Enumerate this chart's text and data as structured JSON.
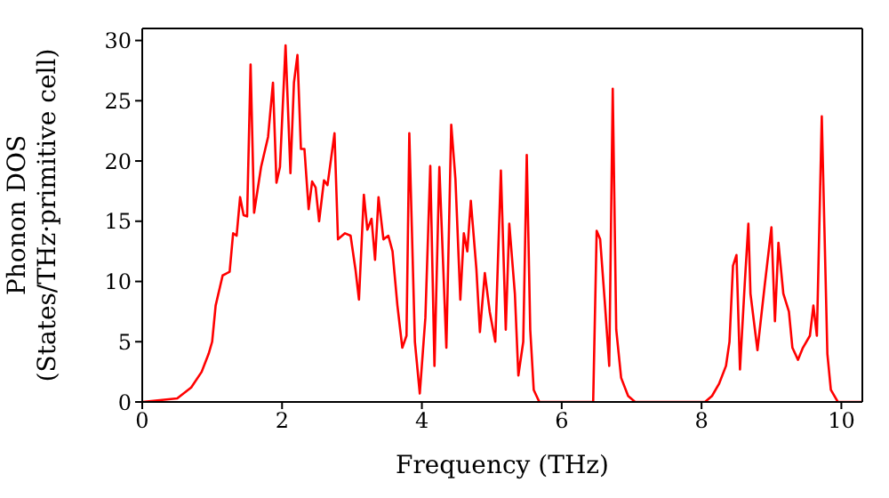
{
  "chart_data": {
    "type": "line",
    "xlabel": "Frequency (THz)",
    "ylabel": "Phonon DOS\n(States/THz·primitive cell)",
    "xlim": [
      0,
      10.3
    ],
    "xticks": [
      0,
      2,
      4,
      6,
      8,
      10
    ],
    "ylim": [
      0,
      31
    ],
    "yticks": [
      0,
      5,
      10,
      15,
      20,
      25,
      30
    ],
    "marker": "none",
    "line_style": "solid",
    "x": [
      0,
      0.5,
      0.7,
      0.85,
      0.95,
      1.0,
      1.05,
      1.15,
      1.25,
      1.3,
      1.35,
      1.4,
      1.45,
      1.5,
      1.55,
      1.6,
      1.7,
      1.8,
      1.87,
      1.92,
      1.97,
      2.05,
      2.12,
      2.17,
      2.22,
      2.27,
      2.32,
      2.38,
      2.43,
      2.48,
      2.53,
      2.6,
      2.65,
      2.75,
      2.8,
      2.9,
      2.98,
      3.05,
      3.1,
      3.17,
      3.22,
      3.28,
      3.33,
      3.38,
      3.45,
      3.52,
      3.58,
      3.65,
      3.72,
      3.78,
      3.82,
      3.9,
      3.97,
      4.05,
      4.12,
      4.18,
      4.25,
      4.35,
      4.42,
      4.48,
      4.55,
      4.6,
      4.65,
      4.7,
      4.78,
      4.83,
      4.9,
      4.97,
      5.05,
      5.13,
      5.2,
      5.25,
      5.33,
      5.38,
      5.45,
      5.5,
      5.55,
      5.6,
      5.68,
      6.45,
      6.5,
      6.55,
      6.62,
      6.68,
      6.73,
      6.78,
      6.85,
      6.95,
      7.05,
      8.05,
      8.15,
      8.25,
      8.35,
      8.4,
      8.45,
      8.5,
      8.55,
      8.62,
      8.67,
      8.7,
      8.8,
      8.9,
      9.0,
      9.05,
      9.1,
      9.17,
      9.25,
      9.3,
      9.38,
      9.45,
      9.55,
      9.6,
      9.65,
      9.72,
      9.8,
      9.85,
      9.95,
      10.3
    ],
    "series": [
      {
        "color": "#ff0000",
        "values": [
          0,
          0.3,
          1.2,
          2.5,
          4,
          5,
          8,
          10.5,
          10.8,
          14,
          13.8,
          17,
          15.5,
          15.4,
          28,
          15.7,
          19.5,
          22,
          26.5,
          18.2,
          19.5,
          29.6,
          19,
          26.5,
          28.8,
          21,
          21,
          16,
          18.3,
          17.8,
          15,
          18.4,
          18,
          22.3,
          13.5,
          14,
          13.8,
          11,
          8.5,
          17.2,
          14.3,
          15.2,
          11.8,
          17,
          13.5,
          13.8,
          12.5,
          8,
          4.5,
          5.5,
          22.3,
          5,
          0.7,
          7,
          19.6,
          3,
          19.5,
          4.5,
          23,
          18.5,
          8.5,
          14,
          12.5,
          16.7,
          11,
          5.8,
          10.7,
          7.5,
          5,
          19.2,
          6,
          14.8,
          9,
          2.2,
          5,
          20.5,
          6,
          1,
          0,
          0,
          14.2,
          13.5,
          8,
          3,
          26,
          6,
          2,
          0.5,
          0,
          0,
          0.5,
          1.5,
          3,
          5,
          11.3,
          12.2,
          2.7,
          10,
          14.8,
          9,
          4.3,
          9.5,
          14.5,
          6.7,
          13.2,
          9,
          7.5,
          4.5,
          3.5,
          4.5,
          5.5,
          8,
          5.5,
          23.7,
          4,
          1,
          0,
          0
        ]
      }
    ]
  }
}
